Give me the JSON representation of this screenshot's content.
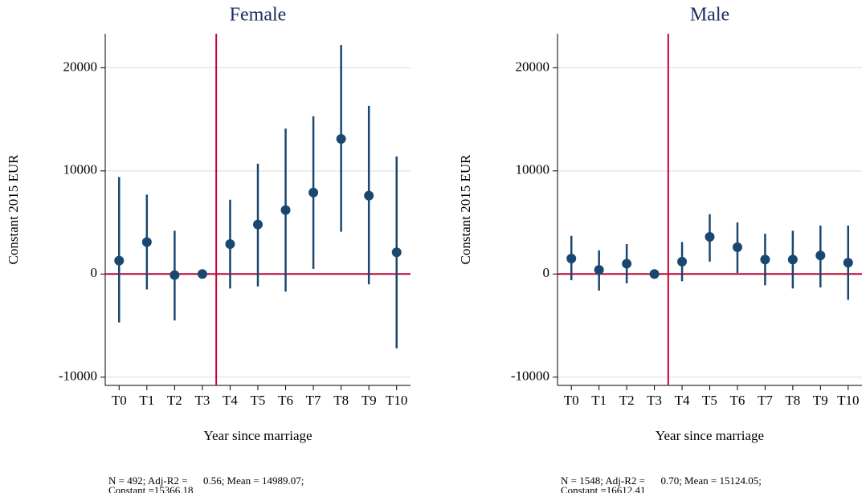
{
  "chart_data": [
    {
      "type": "errorbar",
      "title": "Female",
      "y_label": "Constant 2015 EUR",
      "x_label": "Year since marriage",
      "categories": [
        "T0",
        "T1",
        "T2",
        "T3",
        "T4",
        "T5",
        "T6",
        "T7",
        "T8",
        "T9",
        "T10"
      ],
      "values": [
        1300,
        3100,
        -100,
        0,
        2900,
        4800,
        6200,
        7900,
        13100,
        7600,
        2100
      ],
      "lower": [
        -4700,
        -1500,
        -4500,
        0,
        -1400,
        -1200,
        -1700,
        500,
        4100,
        -1000,
        -7200
      ],
      "upper": [
        9400,
        7700,
        4200,
        0,
        7200,
        10700,
        14100,
        15300,
        22200,
        16300,
        11400
      ],
      "color": "#1a476f",
      "ref_color": "#c10534",
      "hline": 0,
      "vline": 3.5,
      "ylim": [
        -10800,
        23300
      ],
      "yticks": [
        -10000,
        0,
        10000,
        20000
      ],
      "grid": true,
      "notes": [
        "N = 492; Adj-R2 =      0.56; Mean = 14989.07;",
        "Constant =15366.18"
      ]
    },
    {
      "type": "errorbar",
      "title": "Male",
      "y_label": "Constant 2015 EUR",
      "x_label": "Year since marriage",
      "categories": [
        "T0",
        "T1",
        "T2",
        "T3",
        "T4",
        "T5",
        "T6",
        "T7",
        "T8",
        "T9",
        "T10"
      ],
      "values": [
        1500,
        400,
        1000,
        0,
        1200,
        3600,
        2600,
        1400,
        1400,
        1800,
        1100
      ],
      "lower": [
        -600,
        -1600,
        -900,
        0,
        -700,
        1200,
        100,
        -1100,
        -1400,
        -1300,
        -2500
      ],
      "upper": [
        3700,
        2300,
        2900,
        0,
        3100,
        5800,
        5000,
        3900,
        4200,
        4700,
        4700
      ],
      "color": "#1a476f",
      "ref_color": "#c10534",
      "hline": 0,
      "vline": 3.5,
      "ylim": [
        -10800,
        23300
      ],
      "yticks": [
        -10000,
        0,
        10000,
        20000
      ],
      "grid": true,
      "notes": [
        "N = 1548; Adj-R2 =      0.70; Mean = 15124.05;",
        "Constant =16612.41"
      ]
    }
  ]
}
